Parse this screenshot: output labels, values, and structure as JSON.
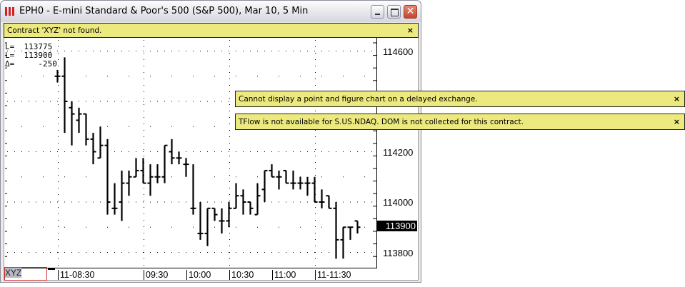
{
  "window": {
    "title": "EPH0 - E-mini Standard & Poor's 500 (S&P 500), Mar 10, 5 Min",
    "close_glyph": "✕"
  },
  "messages": [
    {
      "text": "Contract 'XYZ' not found.",
      "close": "×"
    },
    {
      "text": "Cannot display a point and figure chart on a delayed exchange.",
      "close": "×"
    },
    {
      "text": "TFlow is not available for S.US.NDAQ. DOM is not collected for this contract.",
      "close": "×"
    }
  ],
  "readout": [
    "L=  113775",
    "L=  113900",
    "Δ=     -250"
  ],
  "symbol_input": "XYZ",
  "colors": {
    "message_bg": "#ece97f",
    "bars": "#000000",
    "last_price_bg": "#000000"
  },
  "chart_data": {
    "type": "ohlc-bar",
    "interval": "5 Min",
    "price_ticks": [
      114600,
      114200,
      114000,
      113800
    ],
    "last_price": 113900,
    "time_labels": [
      "11-08:30",
      "09:30",
      "10:00",
      "10:30",
      "11:00",
      "11-11:30"
    ],
    "bars": [
      [
        114500,
        114525,
        114475,
        114500
      ],
      [
        114500,
        114575,
        114275,
        114400
      ],
      [
        114375,
        114400,
        114225,
        114350
      ],
      [
        114325,
        114375,
        114275,
        114350
      ],
      [
        114350,
        114350,
        114225,
        114250
      ],
      [
        114250,
        114275,
        114150,
        114200
      ],
      [
        114175,
        114300,
        114175,
        114225
      ],
      [
        114225,
        114250,
        113950,
        114000
      ],
      [
        113975,
        114075,
        113950,
        113975
      ],
      [
        114000,
        114125,
        113925,
        114075
      ],
      [
        114075,
        114125,
        114025,
        114100
      ],
      [
        114100,
        114175,
        114100,
        114125
      ],
      [
        114125,
        114175,
        114075,
        114075
      ],
      [
        114075,
        114150,
        114025,
        114100
      ],
      [
        114100,
        114150,
        114075,
        114100
      ],
      [
        114100,
        114225,
        114075,
        114225
      ],
      [
        114200,
        114250,
        114150,
        114175
      ],
      [
        114175,
        114200,
        114150,
        114175
      ],
      [
        114150,
        114175,
        114100,
        114150
      ],
      [
        113975,
        114150,
        113950,
        113975
      ],
      [
        113875,
        114000,
        113850,
        113875
      ],
      [
        113875,
        113975,
        113825,
        113975
      ],
      [
        113975,
        113975,
        113925,
        113950
      ],
      [
        113925,
        113975,
        113875,
        113925
      ],
      [
        113925,
        114000,
        113900,
        113975
      ],
      [
        113975,
        114075,
        113975,
        114025
      ],
      [
        114025,
        114050,
        113950,
        114000
      ],
      [
        114000,
        114000,
        113950,
        113975
      ],
      [
        113950,
        114075,
        113950,
        114025
      ],
      [
        114050,
        114125,
        114000,
        114125
      ],
      [
        114125,
        114150,
        114100,
        114100
      ],
      [
        114100,
        114125,
        114050,
        114100
      ],
      [
        114125,
        114125,
        114075,
        114075
      ],
      [
        114075,
        114125,
        114050,
        114075
      ],
      [
        114075,
        114100,
        114050,
        114075
      ],
      [
        114075,
        114100,
        114025,
        114075
      ],
      [
        114075,
        114100,
        114000,
        114000
      ],
      [
        114000,
        114050,
        113975,
        114000
      ],
      [
        114025,
        114025,
        113975,
        113975
      ],
      [
        113975,
        114000,
        113775,
        113850
      ],
      [
        113850,
        113900,
        113775,
        113900
      ],
      [
        113900,
        113900,
        113850,
        113900
      ],
      [
        113925,
        113925,
        113875,
        113900
      ]
    ]
  }
}
